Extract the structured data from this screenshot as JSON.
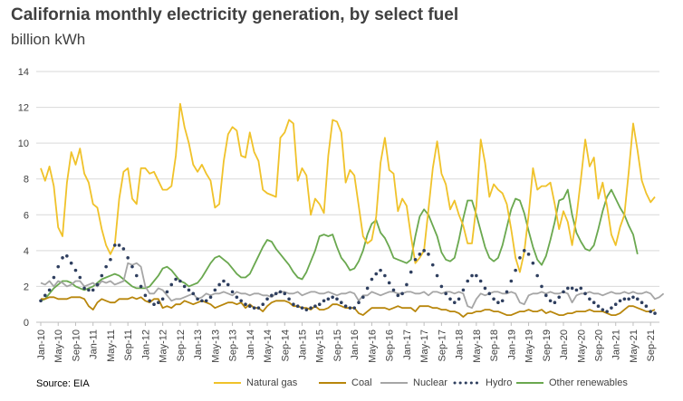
{
  "header": {
    "title": "California monthly electricity generation, by select fuel",
    "subtitle": "billion kWh"
  },
  "footer": {
    "source": "Source: EIA"
  },
  "colors": {
    "natural_gas": "#f0c22a",
    "coal": "#b8860b",
    "nuclear": "#a6a6a6",
    "hydro": "#2f3f5f",
    "other_renewables": "#6aa84f",
    "gridline": "#d9d9d9",
    "axis": "#bfbfbf"
  },
  "chart_data": {
    "type": "line",
    "title": "California monthly electricity generation, by select fuel",
    "subtitle": "billion kWh",
    "ylim": [
      0,
      14
    ],
    "yticks": [
      0,
      2,
      4,
      6,
      8,
      10,
      12,
      14
    ],
    "grid": true,
    "legend_position": "bottom",
    "x_start": "Jan-10",
    "x_labels": [
      "Jan-10",
      "May-10",
      "Sep-10",
      "Jan-11",
      "May-11",
      "Sep-11",
      "Jan-12",
      "May-12",
      "Sep-12",
      "Jan-13",
      "May-13",
      "Sep-13",
      "Jan-14",
      "May-14",
      "Sep-14",
      "Jan-15",
      "May-15",
      "Sep-15",
      "Jan-16",
      "May-16",
      "Sep-16",
      "Jan-17",
      "May-17",
      "Sep-17",
      "Jan-18",
      "May-18",
      "Sep-18",
      "Jan-19",
      "May-19",
      "Sep-19",
      "Jan-20",
      "May-20",
      "Sep-20",
      "Jan-21",
      "May-21",
      "Sep-21"
    ],
    "series": [
      {
        "name": "Natural gas",
        "style": "solid",
        "values": [
          8.6,
          7.9,
          8.7,
          7.6,
          5.3,
          4.8,
          7.8,
          9.5,
          8.8,
          9.7,
          8.3,
          7.8,
          6.6,
          6.4,
          5.2,
          4.3,
          3.8,
          4.3,
          6.9,
          8.4,
          8.6,
          6.9,
          6.6,
          8.6,
          8.6,
          8.3,
          8.4,
          7.9,
          7.4,
          7.4,
          7.6,
          9.3,
          12.2,
          10.9,
          10.0,
          8.8,
          8.4,
          8.8,
          8.3,
          7.9,
          6.4,
          6.6,
          9.0,
          10.5,
          10.9,
          10.7,
          9.3,
          9.2,
          10.6,
          9.5,
          9.0,
          7.4,
          7.2,
          7.1,
          7.0,
          10.3,
          10.6,
          11.3,
          11.1,
          7.9,
          8.6,
          8.2,
          6.0,
          6.9,
          6.6,
          6.1,
          9.3,
          11.3,
          11.2,
          10.6,
          7.8,
          8.5,
          8.2,
          6.5,
          4.8,
          4.4,
          4.6,
          5.9,
          8.9,
          10.3,
          8.5,
          8.3,
          6.2,
          6.9,
          6.5,
          4.8,
          3.3,
          3.6,
          4.0,
          6.3,
          8.6,
          10.1,
          8.3,
          7.7,
          6.3,
          6.8,
          6.0,
          5.4,
          4.4,
          4.4,
          6.5,
          10.2,
          8.9,
          7.0,
          7.7,
          7.4,
          7.2,
          6.6,
          5.2,
          3.6,
          2.8,
          3.9,
          6.0,
          8.6,
          7.4,
          7.6,
          7.6,
          7.8,
          6.6,
          5.2,
          6.2,
          5.6,
          4.3,
          5.9,
          8.0,
          10.2,
          8.7,
          9.2,
          6.9,
          7.8,
          6.5,
          4.9,
          4.3,
          5.3,
          6.0,
          8.4,
          11.1,
          9.6,
          7.9,
          7.2,
          6.7,
          7.0
        ]
      },
      {
        "name": "Coal",
        "style": "solid",
        "values": [
          1.3,
          1.3,
          1.4,
          1.4,
          1.3,
          1.3,
          1.3,
          1.4,
          1.4,
          1.4,
          1.3,
          0.9,
          0.7,
          1.1,
          1.3,
          1.2,
          1.1,
          1.1,
          1.3,
          1.3,
          1.3,
          1.4,
          1.3,
          1.4,
          1.2,
          1.1,
          1.3,
          1.3,
          0.8,
          0.9,
          0.8,
          1.0,
          1.0,
          1.2,
          1.1,
          1.0,
          1.1,
          1.2,
          1.1,
          1.0,
          0.8,
          0.9,
          1.0,
          1.1,
          1.1,
          1.0,
          1.1,
          0.8,
          1.0,
          0.8,
          0.8,
          0.6,
          0.9,
          1.1,
          1.2,
          1.2,
          1.2,
          1.1,
          0.9,
          0.9,
          0.8,
          0.8,
          0.7,
          0.9,
          0.7,
          0.7,
          0.8,
          1.0,
          1.0,
          0.9,
          0.8,
          0.8,
          0.8,
          0.5,
          0.4,
          0.6,
          0.8,
          0.8,
          0.8,
          0.8,
          0.7,
          0.8,
          0.9,
          0.8,
          0.8,
          0.8,
          0.6,
          0.9,
          0.9,
          0.9,
          0.8,
          0.8,
          0.7,
          0.7,
          0.6,
          0.6,
          0.5,
          0.3,
          0.5,
          0.5,
          0.6,
          0.6,
          0.7,
          0.7,
          0.6,
          0.6,
          0.5,
          0.4,
          0.4,
          0.5,
          0.6,
          0.6,
          0.7,
          0.6,
          0.6,
          0.7,
          0.5,
          0.6,
          0.5,
          0.4,
          0.4,
          0.5,
          0.5,
          0.6,
          0.6,
          0.6,
          0.7,
          0.6,
          0.6,
          0.6,
          0.5,
          0.4,
          0.4,
          0.5,
          0.7,
          0.9,
          0.9,
          0.8,
          0.7,
          0.6,
          0.6,
          0.7
        ]
      },
      {
        "name": "Nuclear",
        "style": "solid",
        "values": [
          2.2,
          2.1,
          2.3,
          2.0,
          2.3,
          2.2,
          2.0,
          2.1,
          2.3,
          2.3,
          2.0,
          2.1,
          2.2,
          2.0,
          2.3,
          2.2,
          2.3,
          2.1,
          2.2,
          2.3,
          3.3,
          3.2,
          3.3,
          3.1,
          2.0,
          1.6,
          1.6,
          1.9,
          1.8,
          1.5,
          1.2,
          1.3,
          1.3,
          1.4,
          1.5,
          1.6,
          1.3,
          1.4,
          1.6,
          1.5,
          1.6,
          1.6,
          1.7,
          1.6,
          1.5,
          1.7,
          1.6,
          1.6,
          1.5,
          1.6,
          1.6,
          1.5,
          1.5,
          1.4,
          1.6,
          1.7,
          1.7,
          1.6,
          1.6,
          1.7,
          1.5,
          1.6,
          1.7,
          1.7,
          1.6,
          1.6,
          1.7,
          1.6,
          1.5,
          1.6,
          1.6,
          1.7,
          1.6,
          1.2,
          1.5,
          1.5,
          1.7,
          1.6,
          1.5,
          1.6,
          1.7,
          1.7,
          1.6,
          1.6,
          1.7,
          1.7,
          1.6,
          1.6,
          1.7,
          1.5,
          1.7,
          1.7,
          1.6,
          1.7,
          1.7,
          1.6,
          1.7,
          1.6,
          0.9,
          0.8,
          1.3,
          1.6,
          1.5,
          1.6,
          1.7,
          1.7,
          1.6,
          1.6,
          1.7,
          1.6,
          1.1,
          1.0,
          1.5,
          1.6,
          1.6,
          1.7,
          1.6,
          1.7,
          1.6,
          1.6,
          1.7,
          1.6,
          1.1,
          1.5,
          1.6,
          1.6,
          1.7,
          1.6,
          1.6,
          1.5,
          1.6,
          1.7,
          1.6,
          1.6,
          1.7,
          1.6,
          1.7,
          1.6,
          1.6,
          1.7,
          1.6,
          1.3,
          1.4,
          1.6
        ]
      },
      {
        "name": "Hydro",
        "style": "dotted",
        "values": [
          1.2,
          1.5,
          1.8,
          2.5,
          3.1,
          3.6,
          3.7,
          3.3,
          2.9,
          2.5,
          1.9,
          1.8,
          1.8,
          2.1,
          2.6,
          3.1,
          3.5,
          4.3,
          4.3,
          4.1,
          3.6,
          3.1,
          2.6,
          2.0,
          1.5,
          1.2,
          1.0,
          1.1,
          1.3,
          1.7,
          2.1,
          2.4,
          2.3,
          2.0,
          1.8,
          1.6,
          1.3,
          1.2,
          1.2,
          1.4,
          1.8,
          2.1,
          2.3,
          2.1,
          1.7,
          1.4,
          1.2,
          1.0,
          0.9,
          0.8,
          0.8,
          1.0,
          1.3,
          1.5,
          1.6,
          1.7,
          1.6,
          1.3,
          1.0,
          0.9,
          0.8,
          0.7,
          0.8,
          0.9,
          1.0,
          1.2,
          1.3,
          1.4,
          1.3,
          1.1,
          0.9,
          0.8,
          0.8,
          1.1,
          1.4,
          1.9,
          2.4,
          2.7,
          2.9,
          2.6,
          2.2,
          1.8,
          1.5,
          1.6,
          2.1,
          2.8,
          3.5,
          3.8,
          4.0,
          3.8,
          3.2,
          2.6,
          2.0,
          1.6,
          1.3,
          1.1,
          1.3,
          1.8,
          2.3,
          2.6,
          2.6,
          2.3,
          1.9,
          1.6,
          1.3,
          1.1,
          1.2,
          1.7,
          2.3,
          2.9,
          3.6,
          4.0,
          3.8,
          3.3,
          2.6,
          2.0,
          1.5,
          1.2,
          1.1,
          1.4,
          1.7,
          1.9,
          1.9,
          1.8,
          1.9,
          1.6,
          1.3,
          1.1,
          0.9,
          0.7,
          0.6,
          0.8,
          1.0,
          1.2,
          1.3,
          1.3,
          1.4,
          1.3,
          1.1,
          0.9,
          0.6,
          0.5
        ]
      },
      {
        "name": "Other renewables",
        "style": "solid",
        "values": [
          1.2,
          1.3,
          1.6,
          1.9,
          2.1,
          2.3,
          2.3,
          2.2,
          2.0,
          1.9,
          1.8,
          1.9,
          2.0,
          2.2,
          2.4,
          2.5,
          2.6,
          2.7,
          2.6,
          2.4,
          2.2,
          2.0,
          1.9,
          1.9,
          1.9,
          2.0,
          2.3,
          2.6,
          3.0,
          3.1,
          2.9,
          2.6,
          2.3,
          2.2,
          2.0,
          2.1,
          2.2,
          2.5,
          2.9,
          3.3,
          3.6,
          3.7,
          3.5,
          3.3,
          3.0,
          2.7,
          2.5,
          2.5,
          2.7,
          3.2,
          3.7,
          4.2,
          4.6,
          4.5,
          4.1,
          3.8,
          3.5,
          3.2,
          2.8,
          2.5,
          2.4,
          2.8,
          3.4,
          4.0,
          4.8,
          4.9,
          4.8,
          4.9,
          4.2,
          3.6,
          3.3,
          2.9,
          3.0,
          3.4,
          4.0,
          4.9,
          5.5,
          5.7,
          5.0,
          4.7,
          4.2,
          3.6,
          3.5,
          3.4,
          3.3,
          3.5,
          4.8,
          5.9,
          6.3,
          6.0,
          5.4,
          4.8,
          3.9,
          3.5,
          3.4,
          3.6,
          4.6,
          5.8,
          6.8,
          6.8,
          6.0,
          5.1,
          4.2,
          3.6,
          3.4,
          3.6,
          4.3,
          5.3,
          6.3,
          6.9,
          6.8,
          6.1,
          5.1,
          4.2,
          3.5,
          3.2,
          3.7,
          4.6,
          5.6,
          6.8,
          6.9,
          7.4,
          6.0,
          5.0,
          4.5,
          4.1,
          4.0,
          4.3,
          5.2,
          6.2,
          7.0,
          7.4,
          6.9,
          6.4,
          6.0,
          5.4,
          4.9,
          3.8
        ]
      }
    ]
  }
}
